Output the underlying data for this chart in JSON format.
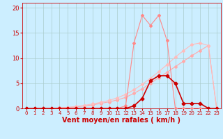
{
  "bg_color": "#cceeff",
  "grid_color": "#aacccc",
  "xlabel": "Vent moyen/en rafales ( km/h )",
  "xlabel_color": "#cc0000",
  "xlabel_fontsize": 7,
  "tick_color": "#cc0000",
  "tick_fontsize": 6,
  "xlim": [
    -0.5,
    23.5
  ],
  "ylim": [
    0,
    21
  ],
  "yticks": [
    0,
    5,
    10,
    15,
    20
  ],
  "xticks": [
    0,
    1,
    2,
    3,
    4,
    5,
    6,
    7,
    8,
    9,
    10,
    11,
    12,
    13,
    14,
    15,
    16,
    17,
    18,
    19,
    20,
    21,
    22,
    23
  ],
  "line_diag1_x": [
    0,
    1,
    2,
    3,
    4,
    5,
    6,
    7,
    8,
    9,
    10,
    11,
    12,
    13,
    14,
    15,
    16,
    17,
    18,
    19,
    20,
    21,
    22,
    23
  ],
  "line_diag1_y": [
    0,
    0,
    0,
    0,
    0.1,
    0.2,
    0.3,
    0.5,
    0.7,
    1.0,
    1.3,
    1.7,
    2.2,
    3.0,
    3.9,
    5.0,
    6.1,
    7.2,
    8.3,
    9.4,
    10.5,
    11.5,
    12.5,
    0
  ],
  "line_diag1_color": "#ffaaaa",
  "line_diag1_marker": "D",
  "line_diag1_markersize": 2,
  "line_diag1_linewidth": 0.8,
  "line_diag2_x": [
    0,
    1,
    2,
    3,
    4,
    5,
    6,
    7,
    8,
    9,
    10,
    11,
    12,
    13,
    14,
    15,
    16,
    17,
    18,
    19,
    20,
    21,
    22,
    23
  ],
  "line_diag2_y": [
    0,
    0,
    0,
    0,
    0.1,
    0.2,
    0.4,
    0.6,
    0.9,
    1.2,
    1.6,
    2.1,
    2.8,
    3.7,
    4.8,
    6.0,
    7.3,
    8.7,
    10.2,
    11.5,
    12.7,
    13.0,
    12.5,
    0
  ],
  "line_diag2_color": "#ffbbbb",
  "line_diag2_marker": "D",
  "line_diag2_markersize": 2,
  "line_diag2_linewidth": 0.8,
  "line_jagged_x": [
    0,
    1,
    2,
    3,
    4,
    5,
    6,
    7,
    8,
    9,
    10,
    11,
    12,
    13,
    14,
    15,
    16,
    17,
    18,
    19,
    20,
    21,
    22,
    23
  ],
  "line_jagged_y": [
    0,
    0,
    0,
    0,
    0,
    0,
    0,
    0,
    0,
    0,
    0,
    0,
    0.5,
    13.0,
    18.5,
    16.5,
    18.5,
    13.5,
    0,
    0,
    0,
    0,
    0,
    0
  ],
  "line_jagged_color": "#ff8888",
  "line_jagged_marker": "D",
  "line_jagged_markersize": 2,
  "line_jagged_linewidth": 0.8,
  "line_bell_x": [
    0,
    1,
    2,
    3,
    4,
    5,
    6,
    7,
    8,
    9,
    10,
    11,
    12,
    13,
    14,
    15,
    16,
    17,
    18,
    19,
    20,
    21,
    22,
    23
  ],
  "line_bell_y": [
    0,
    0,
    0,
    0,
    0,
    0,
    0,
    0,
    0,
    0,
    0,
    0,
    0,
    0.5,
    2.0,
    5.5,
    6.5,
    6.5,
    5.0,
    1.0,
    1.0,
    1.0,
    0,
    0
  ],
  "line_bell_color": "#cc0000",
  "line_bell_marker": "D",
  "line_bell_markersize": 2.5,
  "line_bell_linewidth": 1.2
}
